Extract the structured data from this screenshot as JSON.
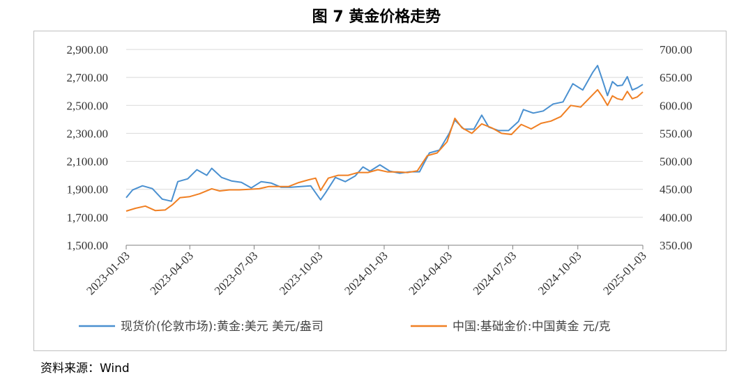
{
  "figure": {
    "title": "图 7 黄金价格走势",
    "source": "资料来源：Wind"
  },
  "colors": {
    "spot_usd": "#4a90d0",
    "china_cny": "#f07f22",
    "grid": "#d9d9d9",
    "axis": "#7f7f7f"
  },
  "chart_data": {
    "type": "line",
    "x_ticks": [
      "2023-01-03",
      "2023-04-03",
      "2023-07-03",
      "2023-10-03",
      "2024-01-03",
      "2024-04-03",
      "2024-07-03",
      "2024-10-03",
      "2025-01-03"
    ],
    "y_left": {
      "range": [
        1500,
        2900
      ],
      "ticks": [
        1500,
        1700,
        1900,
        2100,
        2300,
        2500,
        2700,
        2900
      ],
      "tick_labels": [
        "1,500.00",
        "1,700.00",
        "1,900.00",
        "2,100.00",
        "2,300.00",
        "2,500.00",
        "2,700.00",
        "2,900.00"
      ]
    },
    "y_right": {
      "range": [
        350,
        700
      ],
      "ticks": [
        350,
        400,
        450,
        500,
        550,
        600,
        650,
        700
      ],
      "tick_labels": [
        "350.00",
        "400.00",
        "450.00",
        "500.00",
        "550.00",
        "600.00",
        "650.00",
        "700.00"
      ]
    },
    "grid": true,
    "legend_position": "bottom",
    "series": [
      {
        "name": "现货价(伦敦市场):黄金:美元 美元/盎司",
        "axis": "left",
        "points": [
          [
            "2023-01-03",
            1840
          ],
          [
            "2023-01-12",
            1895
          ],
          [
            "2023-01-26",
            1925
          ],
          [
            "2023-02-09",
            1905
          ],
          [
            "2023-02-23",
            1830
          ],
          [
            "2023-03-08",
            1815
          ],
          [
            "2023-03-17",
            1955
          ],
          [
            "2023-03-31",
            1975
          ],
          [
            "2023-04-13",
            2040
          ],
          [
            "2023-04-27",
            2000
          ],
          [
            "2023-05-04",
            2050
          ],
          [
            "2023-05-18",
            1985
          ],
          [
            "2023-06-01",
            1960
          ],
          [
            "2023-06-15",
            1950
          ],
          [
            "2023-06-29",
            1910
          ],
          [
            "2023-07-13",
            1955
          ],
          [
            "2023-07-27",
            1945
          ],
          [
            "2023-08-10",
            1915
          ],
          [
            "2023-08-24",
            1915
          ],
          [
            "2023-09-07",
            1920
          ],
          [
            "2023-09-21",
            1925
          ],
          [
            "2023-10-05",
            1825
          ],
          [
            "2023-10-12",
            1875
          ],
          [
            "2023-10-26",
            1985
          ],
          [
            "2023-11-09",
            1955
          ],
          [
            "2023-11-23",
            1995
          ],
          [
            "2023-12-04",
            2060
          ],
          [
            "2023-12-14",
            2030
          ],
          [
            "2023-12-28",
            2075
          ],
          [
            "2024-01-11",
            2030
          ],
          [
            "2024-01-25",
            2015
          ],
          [
            "2024-02-08",
            2025
          ],
          [
            "2024-02-22",
            2025
          ],
          [
            "2024-03-07",
            2160
          ],
          [
            "2024-03-21",
            2180
          ],
          [
            "2024-04-04",
            2300
          ],
          [
            "2024-04-12",
            2395
          ],
          [
            "2024-04-25",
            2330
          ],
          [
            "2024-05-09",
            2330
          ],
          [
            "2024-05-20",
            2430
          ],
          [
            "2024-05-30",
            2345
          ],
          [
            "2024-06-13",
            2320
          ],
          [
            "2024-06-27",
            2320
          ],
          [
            "2024-07-11",
            2385
          ],
          [
            "2024-07-18",
            2470
          ],
          [
            "2024-08-01",
            2445
          ],
          [
            "2024-08-15",
            2460
          ],
          [
            "2024-08-29",
            2510
          ],
          [
            "2024-09-12",
            2525
          ],
          [
            "2024-09-26",
            2655
          ],
          [
            "2024-10-10",
            2610
          ],
          [
            "2024-10-24",
            2735
          ],
          [
            "2024-10-31",
            2785
          ],
          [
            "2024-11-07",
            2680
          ],
          [
            "2024-11-14",
            2570
          ],
          [
            "2024-11-21",
            2670
          ],
          [
            "2024-11-28",
            2640
          ],
          [
            "2024-12-05",
            2645
          ],
          [
            "2024-12-12",
            2705
          ],
          [
            "2024-12-19",
            2610
          ],
          [
            "2024-12-26",
            2625
          ],
          [
            "2025-01-03",
            2650
          ]
        ]
      },
      {
        "name": "中国:基础金价:中国黄金 元/克",
        "axis": "right",
        "points": [
          [
            "2023-01-03",
            411
          ],
          [
            "2023-01-16",
            416
          ],
          [
            "2023-01-30",
            420
          ],
          [
            "2023-02-13",
            412
          ],
          [
            "2023-02-27",
            413
          ],
          [
            "2023-03-10",
            423
          ],
          [
            "2023-03-20",
            435
          ],
          [
            "2023-04-03",
            437
          ],
          [
            "2023-04-17",
            442
          ],
          [
            "2023-05-04",
            451
          ],
          [
            "2023-05-15",
            447
          ],
          [
            "2023-05-29",
            449
          ],
          [
            "2023-06-12",
            449
          ],
          [
            "2023-06-26",
            450
          ],
          [
            "2023-07-10",
            451
          ],
          [
            "2023-07-24",
            455
          ],
          [
            "2023-08-07",
            455
          ],
          [
            "2023-08-21",
            455
          ],
          [
            "2023-09-04",
            462
          ],
          [
            "2023-09-18",
            467
          ],
          [
            "2023-09-28",
            470
          ],
          [
            "2023-10-05",
            448
          ],
          [
            "2023-10-16",
            470
          ],
          [
            "2023-10-30",
            475
          ],
          [
            "2023-11-13",
            475
          ],
          [
            "2023-11-27",
            480
          ],
          [
            "2023-12-11",
            480
          ],
          [
            "2023-12-25",
            485
          ],
          [
            "2024-01-08",
            481
          ],
          [
            "2024-01-22",
            481
          ],
          [
            "2024-02-05",
            480
          ],
          [
            "2024-02-19",
            483
          ],
          [
            "2024-03-04",
            510
          ],
          [
            "2024-03-18",
            515
          ],
          [
            "2024-04-01",
            535
          ],
          [
            "2024-04-12",
            577
          ],
          [
            "2024-04-22",
            560
          ],
          [
            "2024-05-06",
            550
          ],
          [
            "2024-05-20",
            567
          ],
          [
            "2024-06-03",
            560
          ],
          [
            "2024-06-17",
            550
          ],
          [
            "2024-07-01",
            548
          ],
          [
            "2024-07-15",
            566
          ],
          [
            "2024-07-29",
            558
          ],
          [
            "2024-08-12",
            568
          ],
          [
            "2024-08-26",
            572
          ],
          [
            "2024-09-09",
            580
          ],
          [
            "2024-09-23",
            600
          ],
          [
            "2024-10-07",
            597
          ],
          [
            "2024-10-21",
            615
          ],
          [
            "2024-10-31",
            628
          ],
          [
            "2024-11-07",
            615
          ],
          [
            "2024-11-14",
            600
          ],
          [
            "2024-11-21",
            617
          ],
          [
            "2024-11-28",
            612
          ],
          [
            "2024-12-05",
            610
          ],
          [
            "2024-12-12",
            625
          ],
          [
            "2024-12-19",
            612
          ],
          [
            "2024-12-26",
            615
          ],
          [
            "2025-01-03",
            624
          ]
        ]
      }
    ]
  }
}
